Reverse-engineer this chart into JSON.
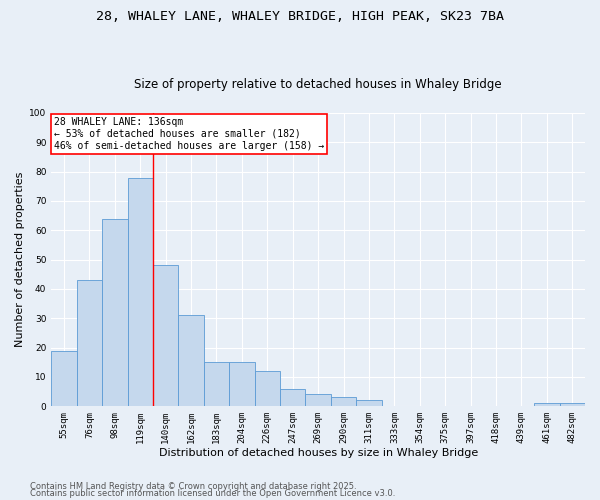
{
  "title1": "28, WHALEY LANE, WHALEY BRIDGE, HIGH PEAK, SK23 7BA",
  "title2": "Size of property relative to detached houses in Whaley Bridge",
  "xlabel": "Distribution of detached houses by size in Whaley Bridge",
  "ylabel": "Number of detached properties",
  "categories": [
    "55sqm",
    "76sqm",
    "98sqm",
    "119sqm",
    "140sqm",
    "162sqm",
    "183sqm",
    "204sqm",
    "226sqm",
    "247sqm",
    "269sqm",
    "290sqm",
    "311sqm",
    "333sqm",
    "354sqm",
    "375sqm",
    "397sqm",
    "418sqm",
    "439sqm",
    "461sqm",
    "482sqm"
  ],
  "values": [
    19,
    43,
    64,
    78,
    48,
    31,
    15,
    15,
    12,
    6,
    4,
    3,
    2,
    0,
    0,
    0,
    0,
    0,
    0,
    1,
    1
  ],
  "bar_color": "#c5d8ed",
  "bar_edge_color": "#5b9bd5",
  "vline_x": 3.5,
  "vline_color": "red",
  "annotation_title": "28 WHALEY LANE: 136sqm",
  "annotation_line1": "← 53% of detached houses are smaller (182)",
  "annotation_line2": "46% of semi-detached houses are larger (158) →",
  "annotation_box_color": "white",
  "annotation_box_edge": "red",
  "ylim": [
    0,
    100
  ],
  "yticks": [
    0,
    10,
    20,
    30,
    40,
    50,
    60,
    70,
    80,
    90,
    100
  ],
  "footer1": "Contains HM Land Registry data © Crown copyright and database right 2025.",
  "footer2": "Contains public sector information licensed under the Open Government Licence v3.0.",
  "bg_color": "#e8eff7",
  "plot_bg_color": "#e8eff7",
  "grid_color": "#ffffff",
  "title_fontsize": 9.5,
  "subtitle_fontsize": 8.5,
  "axis_label_fontsize": 8,
  "tick_fontsize": 6.5,
  "annotation_fontsize": 7,
  "footer_fontsize": 6
}
